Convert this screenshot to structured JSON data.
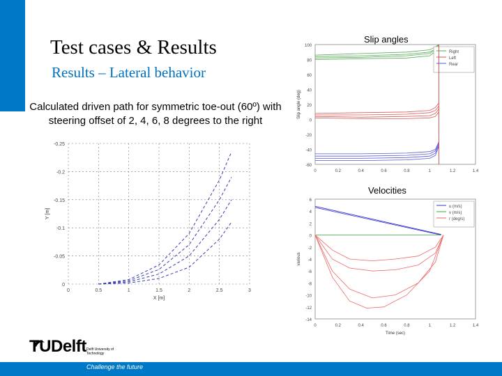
{
  "slide": {
    "title": "Test cases & Results",
    "subtitle": "Results – Lateral behavior",
    "description": "Calculated driven path for symmetric toe-out (60º) with steering offset of 2, 4, 6, 8 degrees to the right"
  },
  "footer": {
    "logo_text": "TUDelft",
    "logo_small": "Delft University of Technology",
    "tagline": "Challenge the future"
  },
  "colors": {
    "accent": "#0078c8",
    "subtitle": "#0070c0"
  },
  "chart_data": [
    {
      "id": "path",
      "type": "line",
      "title": "",
      "xlabel": "X [m]",
      "ylabel": "Y [m]",
      "xlim": [
        0,
        3
      ],
      "ylim": [
        0,
        -0.25
      ],
      "xticks": [
        "0",
        "0.5",
        "1",
        "1.5",
        "2",
        "2.5",
        "3"
      ],
      "yticks": [
        "0",
        "-0.05",
        "-0.1",
        "-0.15",
        "-0.2",
        "-0.25"
      ],
      "series": [
        {
          "x": [
            0.5,
            1.0,
            1.5,
            2.0,
            2.5,
            2.7
          ],
          "y": [
            0,
            -0.002,
            -0.01,
            -0.03,
            -0.08,
            -0.11
          ],
          "color": "#3a3ab0"
        },
        {
          "x": [
            0.5,
            1.0,
            1.5,
            2.0,
            2.5,
            2.7
          ],
          "y": [
            0,
            -0.004,
            -0.018,
            -0.05,
            -0.115,
            -0.15
          ],
          "color": "#3a3ab0"
        },
        {
          "x": [
            0.5,
            1.0,
            1.5,
            2.0,
            2.5,
            2.7
          ],
          "y": [
            0,
            -0.006,
            -0.026,
            -0.07,
            -0.15,
            -0.19
          ],
          "color": "#3a3ab0"
        },
        {
          "x": [
            0.5,
            1.0,
            1.5,
            2.0,
            2.5,
            2.7
          ],
          "y": [
            0,
            -0.008,
            -0.034,
            -0.09,
            -0.185,
            -0.235
          ],
          "color": "#3a3ab0"
        }
      ]
    },
    {
      "id": "slip",
      "type": "line",
      "title": "Slip angles",
      "xlabel": "",
      "ylabel": "Slip angle (deg)",
      "xlim": [
        0,
        1.4
      ],
      "ylim": [
        -60,
        100
      ],
      "xticks": [
        "0",
        "0.2",
        "0.4",
        "0.6",
        "0.8",
        "1",
        "1.2",
        "1.4"
      ],
      "yticks": [
        "100",
        "80",
        "60",
        "40",
        "20",
        "0",
        "-20",
        "-40",
        "-60"
      ],
      "legend": [
        "Right",
        "Left",
        "Rear"
      ],
      "legend_position": "top-right",
      "series": [
        {
          "name": "Right",
          "x": [
            0,
            0.4,
            0.8,
            1.0,
            1.05,
            1.08
          ],
          "y": [
            86,
            88,
            90,
            93,
            97,
            100
          ],
          "color": "#55aa55"
        },
        {
          "name": "Right",
          "x": [
            0,
            0.4,
            0.8,
            1.0,
            1.05,
            1.08
          ],
          "y": [
            84,
            85,
            87,
            90,
            94,
            100
          ],
          "color": "#55aa55"
        },
        {
          "name": "Right",
          "x": [
            0,
            0.4,
            0.8,
            1.0,
            1.05,
            1.08
          ],
          "y": [
            82,
            83,
            85,
            88,
            93,
            100
          ],
          "color": "#55aa55"
        },
        {
          "name": "Right",
          "x": [
            0,
            0.4,
            0.8,
            1.0,
            1.05,
            1.08
          ],
          "y": [
            80,
            81,
            82,
            85,
            91,
            100
          ],
          "color": "#55aa55"
        },
        {
          "name": "Left",
          "x": [
            0,
            0.4,
            0.8,
            1.0,
            1.05,
            1.08
          ],
          "y": [
            8,
            9,
            10,
            12,
            16,
            22
          ],
          "color": "#dd5555"
        },
        {
          "name": "Left",
          "x": [
            0,
            0.4,
            0.8,
            1.0,
            1.05,
            1.08
          ],
          "y": [
            6,
            6,
            7,
            9,
            12,
            18
          ],
          "color": "#dd5555"
        },
        {
          "name": "Left",
          "x": [
            0,
            0.4,
            0.8,
            1.0,
            1.05,
            1.08
          ],
          "y": [
            4,
            3,
            4,
            5,
            8,
            14
          ],
          "color": "#dd5555"
        },
        {
          "name": "Left",
          "x": [
            0,
            0.4,
            0.8,
            1.0,
            1.05,
            1.08
          ],
          "y": [
            2,
            1,
            1,
            2,
            4,
            10
          ],
          "color": "#dd5555"
        },
        {
          "name": "Rear",
          "x": [
            0,
            0.4,
            0.8,
            1.0,
            1.05,
            1.08
          ],
          "y": [
            -46,
            -46,
            -45,
            -43,
            -40,
            -30
          ],
          "color": "#5555dd"
        },
        {
          "name": "Rear",
          "x": [
            0,
            0.4,
            0.8,
            1.0,
            1.05,
            1.08
          ],
          "y": [
            -49,
            -49,
            -48,
            -46,
            -42,
            -32
          ],
          "color": "#5555dd"
        },
        {
          "name": "Rear",
          "x": [
            0,
            0.4,
            0.8,
            1.0,
            1.05,
            1.08
          ],
          "y": [
            -52,
            -52,
            -51,
            -49,
            -45,
            -34
          ],
          "color": "#5555dd"
        },
        {
          "name": "Rear",
          "x": [
            0,
            0.4,
            0.8,
            1.0,
            1.05,
            1.08
          ],
          "y": [
            -55,
            -55,
            -54,
            -52,
            -48,
            -36
          ],
          "color": "#5555dd"
        }
      ]
    },
    {
      "id": "vel",
      "type": "line",
      "title": "Velocities",
      "xlabel": "Time (sec)",
      "ylabel": "various",
      "xlim": [
        0,
        1.4
      ],
      "ylim": [
        -14,
        6
      ],
      "xticks": [
        "0",
        "0.2",
        "0.4",
        "0.6",
        "0.8",
        "1",
        "1.2",
        "1.4"
      ],
      "yticks": [
        "6",
        "4",
        "2",
        "0",
        "-2",
        "-4",
        "-6",
        "-8",
        "-10",
        "-12",
        "-14"
      ],
      "legend": [
        "u (m/s)",
        "v (m/s)",
        "r (deg/s)"
      ],
      "legend_position": "top-right",
      "series": [
        {
          "name": "u (m/s)",
          "x": [
            0,
            1.1
          ],
          "y": [
            4.8,
            0.1
          ],
          "color": "#3333cc"
        },
        {
          "name": "u (m/s)",
          "x": [
            0,
            1.1
          ],
          "y": [
            4.6,
            0.0
          ],
          "color": "#3333cc"
        },
        {
          "name": "v (m/s)",
          "x": [
            0,
            1.1
          ],
          "y": [
            0.0,
            0.0
          ],
          "color": "#33aa33"
        },
        {
          "name": "r (deg/s)",
          "x": [
            0,
            0.15,
            0.3,
            0.5,
            0.7,
            0.9,
            1.05,
            1.12
          ],
          "y": [
            0,
            -2.5,
            -4,
            -4.3,
            -4,
            -3.5,
            -2,
            0
          ],
          "color": "#ee6666"
        },
        {
          "name": "r (deg/s)",
          "x": [
            0,
            0.15,
            0.3,
            0.5,
            0.7,
            0.9,
            1.05,
            1.12
          ],
          "y": [
            0,
            -4,
            -5.5,
            -6,
            -5.8,
            -5,
            -3,
            0
          ],
          "color": "#ee6666"
        },
        {
          "name": "r (deg/s)",
          "x": [
            0,
            0.15,
            0.3,
            0.5,
            0.7,
            0.9,
            1.05,
            1.12
          ],
          "y": [
            0,
            -6,
            -9,
            -10.5,
            -10,
            -8,
            -4.5,
            0
          ],
          "color": "#ee6666"
        },
        {
          "name": "r (deg/s)",
          "x": [
            0,
            0.15,
            0.3,
            0.45,
            0.6,
            0.8,
            1.0,
            1.12
          ],
          "y": [
            0,
            -7,
            -11,
            -12.2,
            -12,
            -10,
            -6,
            0
          ],
          "color": "#ee6666"
        }
      ]
    }
  ]
}
